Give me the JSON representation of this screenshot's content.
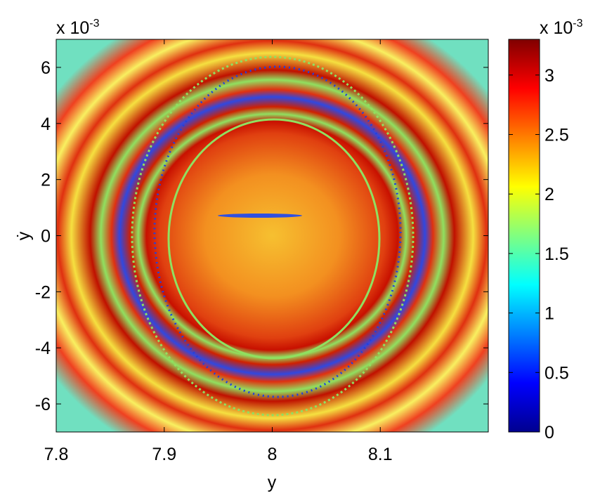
{
  "chart_data": {
    "type": "heatmap",
    "x_label": "y",
    "y_label": "ẏ",
    "y_multiplier": "x 10",
    "y_multiplier_exponent": "-3",
    "xlim": [
      7.8,
      8.2
    ],
    "xticks": [
      7.8,
      7.9,
      8,
      8.1
    ],
    "ylim": [
      -7,
      7
    ],
    "yticks": [
      -6,
      -4,
      -2,
      0,
      2,
      4,
      6
    ],
    "colorbar": {
      "multiplier": "x 10",
      "multiplier_exponent": "-3",
      "lim": [
        0,
        3.3
      ],
      "ticks": [
        0,
        0.5,
        1,
        1.5,
        2,
        2.5,
        3
      ],
      "colormap": "jet"
    }
  }
}
